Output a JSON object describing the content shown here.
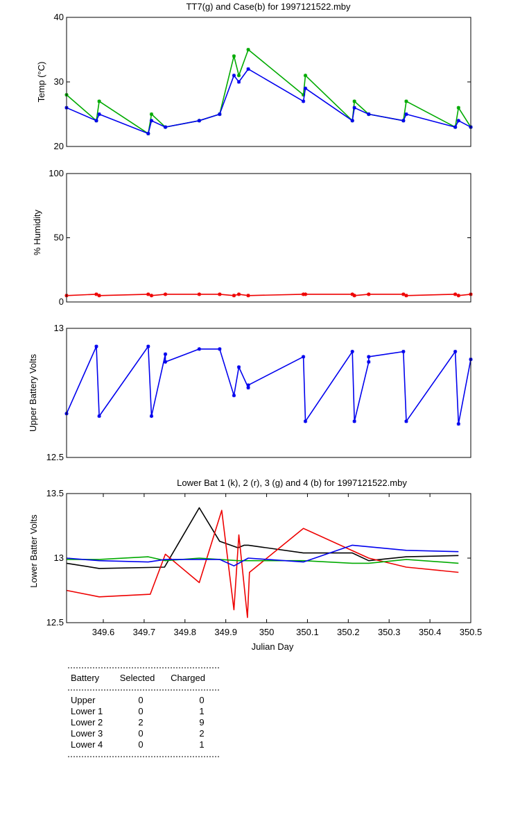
{
  "chart_data": [
    {
      "type": "line",
      "title": "TT7(g) and Case(b) for 1997121522.mby",
      "ylabel": "Temp  (°C)",
      "xlim": [
        349.51,
        350.5
      ],
      "ylim": [
        20,
        40
      ],
      "yticks": [
        "20",
        "30",
        "40"
      ],
      "markers": true,
      "series": [
        {
          "color": "#00aa00",
          "x": [
            349.51,
            349.583,
            349.59,
            349.71,
            349.718,
            349.752,
            349.835,
            349.885,
            349.92,
            349.932,
            349.955,
            350.09,
            350.095,
            350.21,
            350.215,
            350.25,
            350.335,
            350.342,
            350.462,
            350.47,
            350.5
          ],
          "y": [
            28,
            24,
            27,
            22,
            25,
            23,
            24,
            25,
            34,
            31,
            35,
            28,
            31,
            24,
            27,
            25,
            24,
            27,
            23,
            26,
            23
          ]
        },
        {
          "color": "#0000ee",
          "x": [
            349.51,
            349.583,
            349.59,
            349.71,
            349.718,
            349.752,
            349.835,
            349.885,
            349.92,
            349.932,
            349.955,
            350.09,
            350.095,
            350.21,
            350.215,
            350.25,
            350.335,
            350.342,
            350.462,
            350.47,
            350.5
          ],
          "y": [
            26,
            24,
            25,
            22,
            24,
            23,
            24,
            25,
            31,
            30,
            32,
            27,
            29,
            24,
            26,
            25,
            24,
            25,
            23,
            24,
            23
          ]
        }
      ]
    },
    {
      "type": "line",
      "title": "",
      "ylabel": "% Humidity",
      "xlim": [
        349.51,
        350.5
      ],
      "ylim": [
        0,
        100
      ],
      "yticks": [
        "0",
        "50",
        "100"
      ],
      "markers": true,
      "series": [
        {
          "color": "#ee0000",
          "x": [
            349.51,
            349.583,
            349.59,
            349.71,
            349.718,
            349.752,
            349.835,
            349.885,
            349.92,
            349.932,
            349.955,
            350.09,
            350.095,
            350.21,
            350.215,
            350.25,
            350.335,
            350.342,
            350.462,
            350.47,
            350.5
          ],
          "y": [
            5,
            6,
            5,
            6,
            5,
            6,
            6,
            6,
            5,
            6,
            5,
            6,
            6,
            6,
            5,
            6,
            6,
            5,
            6,
            5,
            6
          ]
        }
      ]
    },
    {
      "type": "line",
      "title": "",
      "ylabel": "Upper Battery Volts",
      "xlim": [
        349.51,
        350.5
      ],
      "ylim": [
        12.5,
        13
      ],
      "yticks": [
        "12.5",
        "13"
      ],
      "markers": true,
      "series": [
        {
          "color": "#0000ee",
          "x": [
            349.51,
            349.583,
            349.59,
            349.71,
            349.718,
            349.752,
            349.752,
            349.835,
            349.885,
            349.92,
            349.932,
            349.955,
            349.955,
            350.09,
            350.095,
            350.21,
            350.215,
            350.25,
            350.25,
            350.335,
            350.342,
            350.462,
            350.47,
            350.5
          ],
          "y": [
            12.67,
            12.93,
            12.66,
            12.93,
            12.66,
            12.9,
            12.87,
            12.92,
            12.92,
            12.74,
            12.85,
            12.77,
            12.78,
            12.89,
            12.64,
            12.91,
            12.64,
            12.87,
            12.89,
            12.91,
            12.64,
            12.91,
            12.63,
            12.88
          ]
        }
      ]
    },
    {
      "type": "line",
      "title": "Lower Bat 1 (k), 2 (r), 3 (g) and 4 (b) for 1997121522.mby",
      "ylabel": "Lower Batter Volts",
      "xlabel": "Julian Day",
      "xlim": [
        349.51,
        350.5
      ],
      "ylim": [
        12.5,
        13.5
      ],
      "yticks": [
        "12.5",
        "13",
        "13.5"
      ],
      "xticks": [
        "349.6",
        "349.7",
        "349.8",
        "349.9",
        "350",
        "350.1",
        "350.2",
        "350.3",
        "350.4",
        "350.5"
      ],
      "markers": false,
      "series": [
        {
          "color": "#000000",
          "x": [
            349.51,
            349.59,
            349.75,
            349.835,
            349.885,
            349.93,
            349.945,
            349.955,
            350.09,
            350.21,
            350.25,
            350.342,
            350.47
          ],
          "y": [
            12.96,
            12.92,
            12.93,
            13.39,
            13.13,
            13.08,
            13.1,
            13.1,
            13.04,
            13.04,
            12.98,
            13.01,
            13.02
          ]
        },
        {
          "color": "#ee0000",
          "x": [
            349.51,
            349.59,
            349.715,
            349.752,
            349.835,
            349.89,
            349.92,
            349.932,
            349.953,
            349.958,
            350.09,
            350.25,
            350.342,
            350.47
          ],
          "y": [
            12.75,
            12.7,
            12.72,
            13.03,
            12.81,
            13.37,
            12.6,
            13.18,
            12.54,
            12.89,
            13.23,
            13.0,
            12.93,
            12.89
          ]
        },
        {
          "color": "#00aa00",
          "x": [
            349.51,
            349.59,
            349.71,
            349.752,
            349.835,
            349.885,
            349.93,
            350.09,
            350.21,
            350.25,
            350.342,
            350.47
          ],
          "y": [
            12.99,
            12.99,
            13.01,
            12.98,
            13.0,
            12.99,
            12.98,
            12.98,
            12.96,
            12.96,
            12.99,
            12.96
          ]
        },
        {
          "color": "#0000ee",
          "x": [
            349.51,
            349.59,
            349.71,
            349.752,
            349.835,
            349.885,
            349.92,
            349.955,
            350.09,
            350.21,
            350.342,
            350.47
          ],
          "y": [
            13.0,
            12.98,
            12.97,
            12.99,
            12.99,
            12.99,
            12.94,
            13.0,
            12.97,
            13.1,
            13.06,
            13.05
          ]
        }
      ]
    }
  ],
  "battery_table": {
    "headers": [
      "Battery",
      "Selected",
      "Charged"
    ],
    "rows": [
      [
        "Upper",
        "0",
        "0"
      ],
      [
        "Lower 1",
        "0",
        "1"
      ],
      [
        "Lower 2",
        "2",
        "9"
      ],
      [
        "Lower 3",
        "0",
        "2"
      ],
      [
        "Lower 4",
        "0",
        "1"
      ]
    ]
  }
}
